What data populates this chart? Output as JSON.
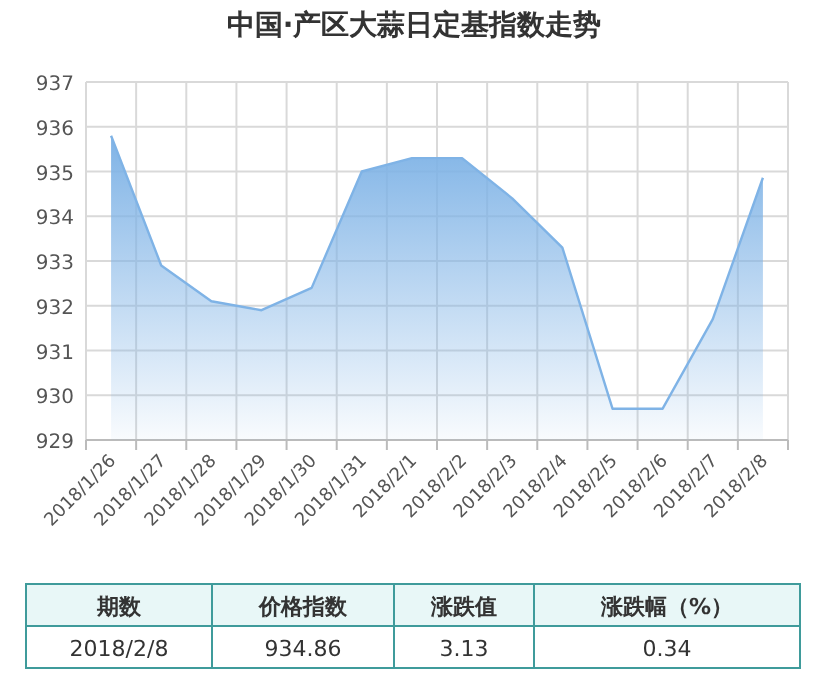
{
  "chart_data": {
    "type": "area",
    "title": "中国·产区大蒜日定基指数走势",
    "categories": [
      "2018/1/26",
      "2018/1/27",
      "2018/1/28",
      "2018/1/29",
      "2018/1/30",
      "2018/1/31",
      "2018/2/1",
      "2018/2/2",
      "2018/2/3",
      "2018/2/4",
      "2018/2/5",
      "2018/2/6",
      "2018/2/7",
      "2018/2/8"
    ],
    "values": [
      935.8,
      932.9,
      932.1,
      931.9,
      932.4,
      935.0,
      935.3,
      935.3,
      934.4,
      933.3,
      929.7,
      929.7,
      931.7,
      934.86
    ],
    "color": "#7fb3e6",
    "ylim": [
      929,
      937
    ],
    "yticks": [
      929,
      930,
      931,
      932,
      933,
      934,
      935,
      936,
      937
    ],
    "grid": true,
    "annotations": [
      "期数",
      "价格指数",
      "涨跌值",
      "涨跌幅（%）",
      "2018/2/8",
      "934.86",
      "3.13",
      "0.34"
    ]
  }
}
